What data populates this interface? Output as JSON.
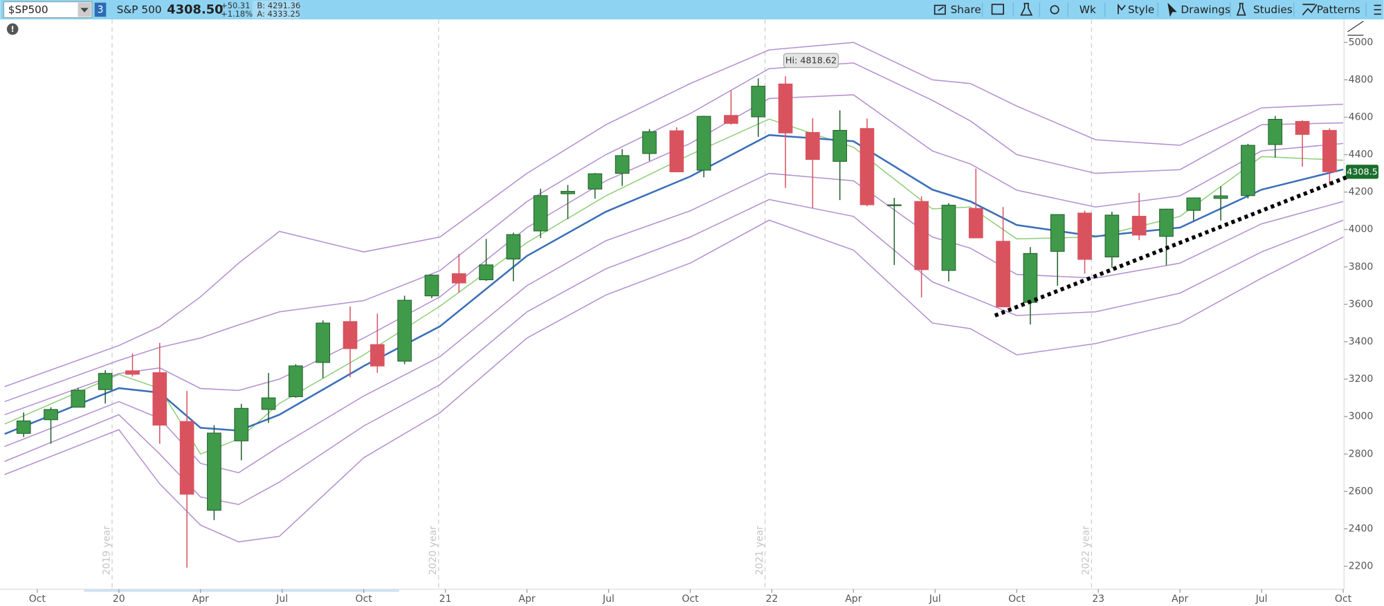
{
  "toolbar": {
    "symbol": "$SP500",
    "badge": "3",
    "name": "S&P 500",
    "price": "4308.50",
    "change": "+50.31",
    "change_pct": "+1.18%",
    "bid": "B: 4291.36",
    "ask": "A: 4333.25",
    "buttons": [
      "Share",
      "Wk",
      "Style",
      "Drawings",
      "Studies",
      "Patterns"
    ]
  },
  "chart_data": {
    "type": "candlestick",
    "xlim": [
      -1.2,
      48
    ],
    "ylim": [
      2077,
      5123
    ],
    "xticks": [
      {
        "value": 0,
        "label": "Oct"
      },
      {
        "value": 3,
        "label": "20"
      },
      {
        "value": 6,
        "label": "Apr"
      },
      {
        "value": 9,
        "label": "Jul"
      },
      {
        "value": 12,
        "label": "Oct"
      },
      {
        "value": 15,
        "label": "21"
      },
      {
        "value": 18,
        "label": "Apr"
      },
      {
        "value": 21,
        "label": "Jul"
      },
      {
        "value": 24,
        "label": "Oct"
      },
      {
        "value": 27,
        "label": "22"
      },
      {
        "value": 30,
        "label": "Apr"
      },
      {
        "value": 33,
        "label": "Jul"
      },
      {
        "value": 36,
        "label": "Oct"
      },
      {
        "value": 39,
        "label": "23"
      },
      {
        "value": 42,
        "label": "Apr"
      },
      {
        "value": 45,
        "label": "Jul"
      },
      {
        "value": 48,
        "label": "Oct"
      }
    ],
    "yticks": [
      2200,
      2400,
      2600,
      2800,
      3000,
      3200,
      3400,
      3600,
      3800,
      4000,
      4200,
      4400,
      4600,
      4800,
      5000
    ],
    "up_color": "#3f9a4a",
    "down_color": "#d9535f",
    "candles": {
      "x": [
        -0.5,
        0.5,
        1.5,
        2.5,
        3.5,
        4.5,
        5.5,
        6.5,
        7.5,
        8.5,
        9.5,
        10.5,
        11.5,
        12.5,
        13.5,
        14.5,
        15.5,
        16.5,
        17.5,
        18.5,
        19.5,
        20.5,
        21.5,
        22.5,
        23.5,
        24.5,
        25.5,
        26.5,
        27.5,
        28.5,
        29.5,
        30.5,
        31.5,
        32.5,
        33.5,
        34.5,
        35.5,
        36.5,
        37.5,
        38.5,
        39.5,
        40.5,
        41.5,
        42.5,
        43.5,
        44.5,
        45.5,
        46.5,
        47.5
      ],
      "open": [
        2910,
        2983,
        3050,
        3144,
        3245,
        3235,
        2974,
        2499,
        2870,
        3038,
        3106,
        3289,
        3508,
        3385,
        3296,
        3645,
        3764,
        3731,
        3842,
        3992,
        4191,
        4216,
        4300,
        4406,
        4528,
        4317,
        4610,
        4602,
        4778,
        4519,
        4364,
        4540,
        4131,
        4150,
        3781,
        4113,
        3937,
        3610,
        3883,
        4088,
        3853,
        4071,
        3963,
        4102,
        4166,
        4181,
        4454,
        4578,
        4530
      ],
      "high": [
        3022,
        3050,
        3154,
        3248,
        3337,
        3394,
        3137,
        2954,
        3068,
        3233,
        3280,
        3514,
        3588,
        3550,
        3646,
        3760,
        3870,
        3950,
        3983,
        4218,
        4238,
        4302,
        4430,
        4537,
        4546,
        4608,
        4743,
        4808,
        4818.62,
        4595,
        4637,
        4593,
        4169,
        4178,
        4141,
        4325,
        4120,
        3906,
        4080,
        4101,
        4095,
        4195,
        4111,
        4170,
        4231,
        4458,
        4607,
        4584,
        4541
      ],
      "low": [
        2891,
        2855,
        3050,
        3070,
        3214,
        2855,
        2192,
        2447,
        2766,
        2966,
        3101,
        3205,
        3210,
        3234,
        3280,
        3633,
        3662,
        3725,
        3723,
        3955,
        4056,
        4165,
        4233,
        4367,
        4306,
        4279,
        4560,
        4495,
        4222,
        4115,
        4157,
        4124,
        3810,
        3637,
        3722,
        3955,
        3585,
        3492,
        3699,
        3764,
        3795,
        3943,
        3809,
        4049,
        4048,
        4166,
        4385,
        4336,
        4238
      ],
      "close": [
        2977,
        3038,
        3141,
        3231,
        3226,
        2954,
        2585,
        2912,
        3044,
        3100,
        3271,
        3500,
        3363,
        3270,
        3622,
        3756,
        3714,
        3811,
        3973,
        4181,
        4204,
        4298,
        4395,
        4523,
        4308,
        4605,
        4567,
        4766,
        4516,
        4374,
        4530,
        4132,
        4132,
        3785,
        4130,
        3955,
        3586,
        3872,
        4080,
        3840,
        4077,
        3970,
        4109,
        4169,
        4180,
        4450,
        4589,
        4508,
        4308.5
      ]
    },
    "bands_x": [
      -1.2,
      3,
      4.5,
      6,
      7.4,
      8.9,
      12,
      14.8,
      18,
      20.9,
      24,
      26.9,
      30,
      32.9,
      34.3,
      36,
      38.9,
      42,
      45,
      48
    ],
    "series": [
      {
        "color": "#b48fd0",
        "values": [
          3160,
          3380,
          3480,
          3640,
          3820,
          3990,
          3880,
          3960,
          4300,
          4560,
          4780,
          4960,
          5000,
          4800,
          4780,
          4660,
          4480,
          4450,
          4650,
          4670
        ]
      },
      {
        "color": "#b48fd0",
        "values": [
          3080,
          3300,
          3370,
          3420,
          3490,
          3560,
          3620,
          3780,
          4150,
          4400,
          4620,
          4860,
          4890,
          4690,
          4580,
          4400,
          4300,
          4320,
          4560,
          4570
        ]
      },
      {
        "color": "#b48fd0",
        "values": [
          3010,
          3230,
          3260,
          3150,
          3140,
          3200,
          3420,
          3640,
          4010,
          4260,
          4460,
          4700,
          4720,
          4420,
          4350,
          4210,
          4120,
          4180,
          4420,
          4460
        ]
      },
      {
        "color": "#8fcf7a",
        "values": [
          2960,
          3225,
          3150,
          2800,
          2880,
          3070,
          3330,
          3590,
          3930,
          4180,
          4400,
          4590,
          4440,
          4110,
          4120,
          3950,
          3960,
          4070,
          4390,
          4370
        ]
      },
      {
        "color": "#3a6fb8",
        "values": [
          2907,
          3152,
          3128,
          2940,
          2925,
          3010,
          3270,
          3482,
          3859,
          4095,
          4283,
          4505,
          4472,
          4213,
          4150,
          4024,
          3963,
          4010,
          4213,
          4321
        ]
      },
      {
        "color": "#b48fd0",
        "values": [
          2840,
          3080,
          2990,
          2750,
          2700,
          2840,
          3110,
          3320,
          3700,
          3940,
          4100,
          4300,
          4260,
          3960,
          3900,
          3760,
          3740,
          3820,
          4030,
          4150
        ]
      },
      {
        "color": "#b48fd0",
        "values": [
          2760,
          3010,
          2800,
          2570,
          2530,
          2650,
          2950,
          3170,
          3560,
          3790,
          3960,
          4160,
          4070,
          3720,
          3640,
          3540,
          3560,
          3660,
          3880,
          4050
        ]
      },
      {
        "color": "#b48fd0",
        "values": [
          2690,
          2930,
          2640,
          2420,
          2330,
          2360,
          2780,
          3020,
          3420,
          3650,
          3820,
          4050,
          3890,
          3500,
          3470,
          3330,
          3390,
          3500,
          3740,
          3960
        ]
      }
    ],
    "trendline": {
      "x": [
        35.2,
        48.4
      ],
      "y": [
        3540,
        4295
      ]
    },
    "year_markers": [
      {
        "x": 2.75,
        "label": "2019 year"
      },
      {
        "x": 14.75,
        "label": "2020 year"
      },
      {
        "x": 26.75,
        "label": "2021 year"
      },
      {
        "x": 38.75,
        "label": "2022 year"
      }
    ],
    "hi_label": "Hi: 4818.62",
    "last_price": 4308.5
  }
}
